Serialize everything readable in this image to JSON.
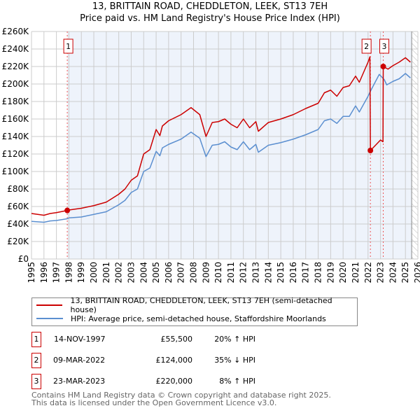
{
  "title": "13, BRITTAIN ROAD, CHEDDLETON, LEEK, ST13 7EH",
  "subtitle": "Price paid vs. HM Land Registry's House Price Index (HPI)",
  "colors": {
    "property": "#cc0000",
    "hpi": "#5b8fd0",
    "shade": "#eef3fb",
    "grid": "#cccccc"
  },
  "chart_data": {
    "type": "line",
    "title": "13, BRITTAIN ROAD, CHEDDLETON, LEEK, ST13 7EH",
    "subtitle": "Price paid vs. HM Land Registry's House Price Index (HPI)",
    "xlim": [
      1995,
      2026
    ],
    "ylim": [
      0,
      260000
    ],
    "grid": true,
    "x_ticks": [
      "1995",
      "1996",
      "1997",
      "1998",
      "1999",
      "2000",
      "2001",
      "2002",
      "2003",
      "2004",
      "2005",
      "2006",
      "2007",
      "2008",
      "2009",
      "2010",
      "2011",
      "2012",
      "2013",
      "2014",
      "2015",
      "2016",
      "2017",
      "2018",
      "2019",
      "2020",
      "2021",
      "2022",
      "2023",
      "2024",
      "2025",
      "2026"
    ],
    "y_ticks": [
      "£0",
      "£20K",
      "£40K",
      "£60K",
      "£80K",
      "£100K",
      "£120K",
      "£140K",
      "£160K",
      "£180K",
      "£200K",
      "£220K",
      "£240K",
      "£260K"
    ],
    "series": [
      {
        "name": "13, BRITTAIN ROAD, CHEDDLETON, LEEK, ST13 7EH (semi-detached house)",
        "points": [
          [
            1995,
            52000
          ],
          [
            1995.5,
            51000
          ],
          [
            1996,
            50000
          ],
          [
            1996.5,
            52000
          ],
          [
            1997,
            53000
          ],
          [
            1997.87,
            55500
          ],
          [
            1998,
            56000
          ],
          [
            1999,
            58000
          ],
          [
            2000,
            61000
          ],
          [
            2001,
            65000
          ],
          [
            2002,
            74000
          ],
          [
            2002.5,
            80000
          ],
          [
            2003,
            90000
          ],
          [
            2003.5,
            95000
          ],
          [
            2004,
            120000
          ],
          [
            2004.5,
            125000
          ],
          [
            2005,
            148000
          ],
          [
            2005.3,
            141000
          ],
          [
            2005.5,
            152000
          ],
          [
            2006,
            158000
          ],
          [
            2007,
            165000
          ],
          [
            2007.8,
            173000
          ],
          [
            2008.5,
            165000
          ],
          [
            2009,
            140000
          ],
          [
            2009.5,
            156000
          ],
          [
            2010,
            157000
          ],
          [
            2010.5,
            160000
          ],
          [
            2011,
            154000
          ],
          [
            2011.5,
            150000
          ],
          [
            2012,
            160000
          ],
          [
            2012.5,
            150000
          ],
          [
            2013,
            157000
          ],
          [
            2013.2,
            146000
          ],
          [
            2014,
            156000
          ],
          [
            2015,
            160000
          ],
          [
            2016,
            165000
          ],
          [
            2017,
            172000
          ],
          [
            2018,
            178000
          ],
          [
            2018.5,
            190000
          ],
          [
            2019,
            193000
          ],
          [
            2019.5,
            186000
          ],
          [
            2020,
            196000
          ],
          [
            2020.5,
            198000
          ],
          [
            2021,
            209000
          ],
          [
            2021.3,
            202000
          ],
          [
            2022,
            225000
          ],
          [
            2022.15,
            231000
          ],
          [
            2022.19,
            124000
          ],
          [
            2022.6,
            130000
          ],
          [
            2023,
            136000
          ],
          [
            2023.2,
            134000
          ],
          [
            2023.22,
            220000
          ],
          [
            2023.6,
            217000
          ],
          [
            2024,
            221000
          ],
          [
            2024.5,
            225000
          ],
          [
            2025,
            230000
          ],
          [
            2025.4,
            225000
          ]
        ]
      },
      {
        "name": "HPI: Average price, semi-detached house, Staffordshire Moorlands",
        "points": [
          [
            1995,
            43000
          ],
          [
            1995.5,
            42500
          ],
          [
            1996,
            42000
          ],
          [
            1996.5,
            43500
          ],
          [
            1997,
            44000
          ],
          [
            1997.87,
            46000
          ],
          [
            1998,
            47000
          ],
          [
            1999,
            48000
          ],
          [
            2000,
            51000
          ],
          [
            2001,
            54000
          ],
          [
            2002,
            62000
          ],
          [
            2002.5,
            67000
          ],
          [
            2003,
            76000
          ],
          [
            2003.5,
            80000
          ],
          [
            2004,
            100000
          ],
          [
            2004.5,
            104000
          ],
          [
            2005,
            123000
          ],
          [
            2005.3,
            118000
          ],
          [
            2005.5,
            127000
          ],
          [
            2006,
            131000
          ],
          [
            2007,
            137000
          ],
          [
            2007.8,
            145000
          ],
          [
            2008.5,
            138000
          ],
          [
            2009,
            117000
          ],
          [
            2009.5,
            130000
          ],
          [
            2010,
            131000
          ],
          [
            2010.5,
            134000
          ],
          [
            2011,
            128000
          ],
          [
            2011.5,
            125000
          ],
          [
            2012,
            134000
          ],
          [
            2012.5,
            125000
          ],
          [
            2013,
            131000
          ],
          [
            2013.2,
            122000
          ],
          [
            2014,
            130000
          ],
          [
            2015,
            133000
          ],
          [
            2016,
            137000
          ],
          [
            2017,
            142000
          ],
          [
            2018,
            148000
          ],
          [
            2018.5,
            158000
          ],
          [
            2019,
            160000
          ],
          [
            2019.5,
            155000
          ],
          [
            2020,
            163000
          ],
          [
            2020.5,
            163000
          ],
          [
            2021,
            175000
          ],
          [
            2021.3,
            168000
          ],
          [
            2022,
            186000
          ],
          [
            2022.2,
            192000
          ],
          [
            2022.9,
            211000
          ],
          [
            2023.3,
            205000
          ],
          [
            2023.5,
            199000
          ],
          [
            2024,
            203000
          ],
          [
            2024.5,
            206000
          ],
          [
            2025,
            212000
          ],
          [
            2025.4,
            207000
          ]
        ]
      }
    ],
    "sales": [
      {
        "label": "1",
        "x": 1997.87,
        "y": 55500
      },
      {
        "label": "2",
        "x": 2022.19,
        "y": 124000
      },
      {
        "label": "3",
        "x": 2023.22,
        "y": 220000
      }
    ],
    "shaded_from": 1997.87,
    "hatched_from": 2025.5
  },
  "legend": [
    "13, BRITTAIN ROAD, CHEDDLETON, LEEK, ST13 7EH (semi-detached house)",
    "HPI: Average price, semi-detached house, Staffordshire Moorlands"
  ],
  "transactions": [
    {
      "num": "1",
      "date": "14-NOV-1997",
      "price": "£55,500",
      "hpi": "20% ↑ HPI"
    },
    {
      "num": "2",
      "date": "09-MAR-2022",
      "price": "£124,000",
      "hpi": "35% ↓ HPI"
    },
    {
      "num": "3",
      "date": "23-MAR-2023",
      "price": "£220,000",
      "hpi": "8% ↑ HPI"
    }
  ],
  "footer": [
    "Contains HM Land Registry data © Crown copyright and database right 2025.",
    "This data is licensed under the Open Government Licence v3.0."
  ]
}
